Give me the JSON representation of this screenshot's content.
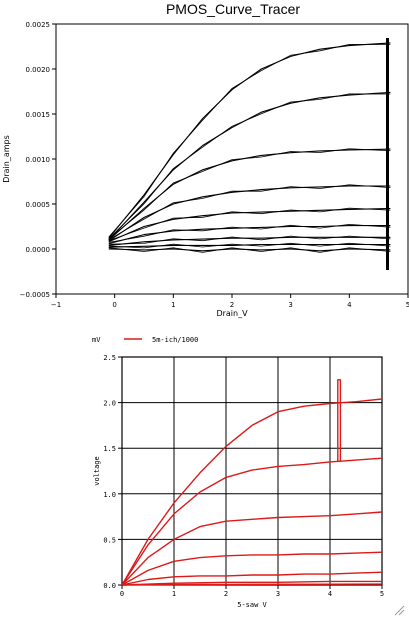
{
  "chart_data": [
    {
      "type": "line",
      "title": "PMOS_Curve_Tracer",
      "xlabel": "Drain_V",
      "ylabel": "Drain_amps",
      "xlim": [
        -1,
        5
      ],
      "ylim": [
        -0.0005,
        0.0025
      ],
      "xticks": [
        "−1",
        "0",
        "1",
        "2",
        "3",
        "4",
        "5"
      ],
      "yticks": [
        "−0.0005",
        "0.0000",
        "0.0005",
        "0.0010",
        "0.0015",
        "0.0020",
        "0.0025"
      ],
      "grid": false,
      "line_color": "#000000",
      "series": [
        {
          "x": [
            -0.1,
            0.5,
            1.0,
            1.5,
            2.0,
            2.5,
            3.0,
            3.5,
            4.0,
            4.7
          ],
          "values": [
            0.00012,
            0.0006,
            0.00105,
            0.00145,
            0.00177,
            0.002,
            0.00214,
            0.00222,
            0.00226,
            0.00229
          ]
        },
        {
          "x": [
            -0.1,
            0.5,
            1.0,
            1.5,
            2.0,
            2.5,
            3.0,
            3.5,
            4.0,
            4.7
          ],
          "values": [
            0.0001,
            0.00052,
            0.00088,
            0.00115,
            0.00135,
            0.00152,
            0.00162,
            0.00168,
            0.00171,
            0.00174
          ]
        },
        {
          "x": [
            -0.1,
            0.5,
            1.0,
            1.5,
            2.0,
            2.5,
            3.0,
            3.5,
            4.0,
            4.7
          ],
          "values": [
            0.0001,
            0.00045,
            0.00072,
            0.00088,
            0.00098,
            0.00104,
            0.00107,
            0.00109,
            0.0011,
            0.00111
          ]
        },
        {
          "x": [
            -0.1,
            0.5,
            1.0,
            1.5,
            2.0,
            2.5,
            3.0,
            3.5,
            4.0,
            4.7
          ],
          "values": [
            9e-05,
            0.00035,
            0.0005,
            0.00058,
            0.00063,
            0.00066,
            0.00068,
            0.00069,
            0.0007,
            0.0007
          ]
        },
        {
          "x": [
            -0.1,
            0.5,
            1.0,
            1.5,
            2.0,
            2.5,
            3.0,
            3.5,
            4.0,
            4.7
          ],
          "values": [
            8e-05,
            0.00025,
            0.00033,
            0.00037,
            0.0004,
            0.00041,
            0.00042,
            0.00043,
            0.00044,
            0.00045
          ]
        },
        {
          "x": [
            -0.1,
            0.5,
            1.0,
            1.5,
            2.0,
            2.5,
            3.0,
            3.5,
            4.0,
            4.7
          ],
          "values": [
            6e-05,
            0.00016,
            0.0002,
            0.00022,
            0.00023,
            0.00024,
            0.00025,
            0.00025,
            0.00026,
            0.00026
          ]
        },
        {
          "x": [
            -0.1,
            0.5,
            1.0,
            1.5,
            2.0,
            2.5,
            3.0,
            3.5,
            4.0,
            4.7
          ],
          "values": [
            4e-05,
            8e-05,
            0.0001,
            0.00011,
            0.00012,
            0.00012,
            0.00013,
            0.00013,
            0.00013,
            0.00013
          ]
        },
        {
          "x": [
            -0.1,
            0.5,
            1.0,
            1.5,
            2.0,
            2.5,
            3.0,
            3.5,
            4.0,
            4.7
          ],
          "values": [
            2e-05,
            3e-05,
            4e-05,
            4e-05,
            4e-05,
            5e-05,
            5e-05,
            5e-05,
            5e-05,
            5e-05
          ]
        },
        {
          "x": [
            -0.1,
            0.5,
            1.0,
            1.5,
            2.0,
            2.5,
            3.0,
            3.5,
            4.0,
            4.7
          ],
          "values": [
            0.0,
            -1e-05,
            0.0,
            -2e-05,
            0.0,
            -1e-05,
            0.0,
            -2e-05,
            0.0,
            -1e-05
          ]
        }
      ]
    },
    {
      "type": "line",
      "unit_label": "mV",
      "legend": "5m-ich/1000",
      "legend_position": "top",
      "xlabel": "5-saw  V",
      "ylabel": "voltage",
      "xlim": [
        0,
        5
      ],
      "ylim": [
        0,
        2.5
      ],
      "xticks": [
        "0",
        "1",
        "2",
        "3",
        "4",
        "5"
      ],
      "yticks": [
        "0.0",
        "0.5",
        "1.0",
        "1.5",
        "2.0",
        "2.5"
      ],
      "grid": true,
      "line_color": "#dd1a1a",
      "series": [
        {
          "x": [
            0,
            0.5,
            1.0,
            1.5,
            2.0,
            2.5,
            3.0,
            3.5,
            4.0,
            4.5,
            5.0
          ],
          "values": [
            0,
            0.5,
            0.9,
            1.23,
            1.52,
            1.75,
            1.9,
            1.96,
            1.99,
            2.01,
            2.04
          ]
        },
        {
          "x": [
            0,
            0.5,
            1.0,
            1.5,
            2.0,
            2.5,
            3.0,
            3.5,
            4.0,
            4.5,
            5.0
          ],
          "values": [
            0,
            0.44,
            0.78,
            1.02,
            1.18,
            1.26,
            1.3,
            1.32,
            1.35,
            1.37,
            1.39
          ]
        },
        {
          "x": [
            0,
            0.5,
            1.0,
            1.5,
            2.0,
            2.5,
            3.0,
            3.5,
            4.0,
            4.5,
            5.0
          ],
          "values": [
            0,
            0.3,
            0.5,
            0.64,
            0.7,
            0.72,
            0.74,
            0.75,
            0.76,
            0.78,
            0.8
          ]
        },
        {
          "x": [
            0,
            0.5,
            1.0,
            1.5,
            2.0,
            2.5,
            3.0,
            3.5,
            4.0,
            4.5,
            5.0
          ],
          "values": [
            0,
            0.16,
            0.26,
            0.3,
            0.32,
            0.33,
            0.33,
            0.34,
            0.34,
            0.35,
            0.36
          ]
        },
        {
          "x": [
            0,
            0.5,
            1.0,
            1.5,
            2.0,
            2.5,
            3.0,
            3.5,
            4.0,
            4.5,
            5.0
          ],
          "values": [
            0,
            0.06,
            0.09,
            0.1,
            0.1,
            0.11,
            0.11,
            0.12,
            0.12,
            0.13,
            0.14
          ]
        },
        {
          "x": [
            0,
            1.0,
            2.0,
            3.0,
            4.0,
            5.0
          ],
          "values": [
            0,
            0.02,
            0.03,
            0.03,
            0.04,
            0.04
          ]
        },
        {
          "x": [
            0,
            1.0,
            2.0,
            3.0,
            4.0,
            5.0
          ],
          "values": [
            0,
            0.005,
            0.007,
            0.008,
            0.009,
            0.01
          ]
        },
        {
          "x": [
            4.15,
            4.15,
            4.2,
            4.2
          ],
          "values": [
            1.35,
            2.25,
            2.25,
            1.35
          ]
        }
      ]
    }
  ]
}
